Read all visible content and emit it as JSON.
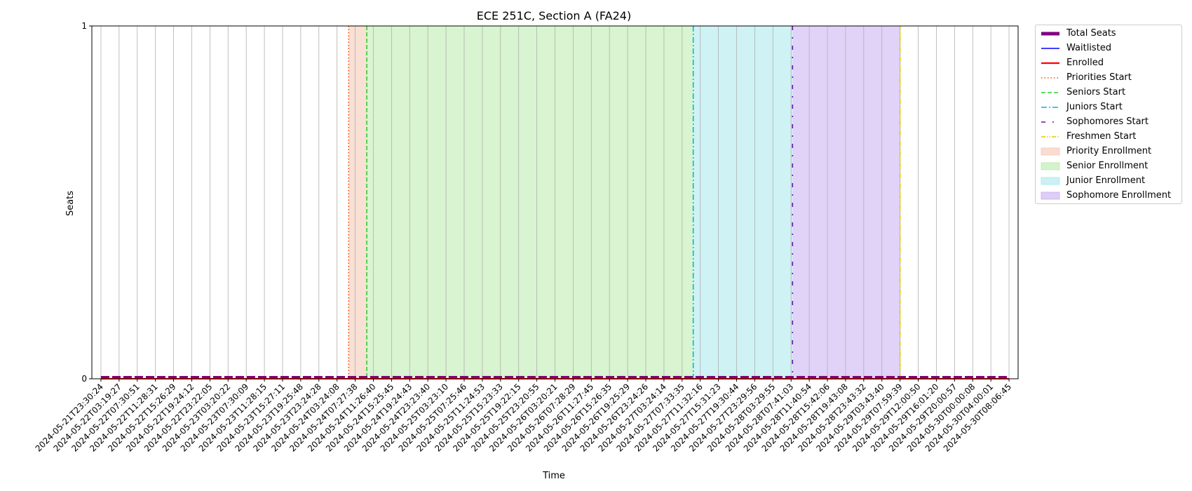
{
  "chart_data": {
    "type": "line",
    "title": "ECE 251C, Section A (FA24)",
    "xlabel": "Time",
    "ylabel": "Seats",
    "ylim": [
      0,
      1
    ],
    "yticks": [
      "0",
      "1"
    ],
    "grid": "vertical",
    "legend_position": "outside-right",
    "x": [
      "2024-05-21T23:30:24",
      "2024-05-22T03:19:27",
      "2024-05-22T07:30:51",
      "2024-05-22T11:28:31",
      "2024-05-22T15:26:29",
      "2024-05-22T19:24:12",
      "2024-05-22T23:22:05",
      "2024-05-23T03:20:22",
      "2024-05-23T07:30:09",
      "2024-05-23T11:28:15",
      "2024-05-23T15:27:11",
      "2024-05-23T19:25:48",
      "2024-05-23T23:24:28",
      "2024-05-24T03:24:08",
      "2024-05-24T07:27:38",
      "2024-05-24T11:26:40",
      "2024-05-24T15:25:45",
      "2024-05-24T19:24:43",
      "2024-05-24T23:23:40",
      "2024-05-25T03:23:10",
      "2024-05-25T07:25:46",
      "2024-05-25T11:24:53",
      "2024-05-25T15:23:33",
      "2024-05-25T19:22:15",
      "2024-05-25T23:20:55",
      "2024-05-26T03:20:21",
      "2024-05-26T07:28:29",
      "2024-05-26T11:27:45",
      "2024-05-26T15:26:35",
      "2024-05-26T19:25:29",
      "2024-05-26T23:24:26",
      "2024-05-27T03:24:14",
      "2024-05-27T07:33:35",
      "2024-05-27T11:32:16",
      "2024-05-27T15:31:23",
      "2024-05-27T19:30:44",
      "2024-05-27T23:29:56",
      "2024-05-28T03:29:55",
      "2024-05-28T07:41:03",
      "2024-05-28T11:40:54",
      "2024-05-28T15:42:06",
      "2024-05-28T19:43:08",
      "2024-05-28T23:43:32",
      "2024-05-29T03:43:40",
      "2024-05-29T07:59:39",
      "2024-05-29T12:00:50",
      "2024-05-29T16:01:20",
      "2024-05-29T20:00:57",
      "2024-05-30T00:00:08",
      "2024-05-30T04:00:01",
      "2024-05-30T08:06:45"
    ],
    "series": [
      {
        "name": "Total Seats",
        "color": "#800080",
        "style": "dashed-thick",
        "values": [
          0,
          0,
          0,
          0,
          0,
          0,
          0,
          0,
          0,
          0,
          0,
          0,
          0,
          0,
          0,
          0,
          0,
          0,
          0,
          0,
          0,
          0,
          0,
          0,
          0,
          0,
          0,
          0,
          0,
          0,
          0,
          0,
          0,
          0,
          0,
          0,
          0,
          0,
          0,
          0,
          0,
          0,
          0,
          0,
          0,
          0,
          0,
          0,
          0,
          0,
          0
        ]
      },
      {
        "name": "Waitlisted",
        "color": "#0000ff",
        "style": "solid",
        "values": [
          0,
          0,
          0,
          0,
          0,
          0,
          0,
          0,
          0,
          0,
          0,
          0,
          0,
          0,
          0,
          0,
          0,
          0,
          0,
          0,
          0,
          0,
          0,
          0,
          0,
          0,
          0,
          0,
          0,
          0,
          0,
          0,
          0,
          0,
          0,
          0,
          0,
          0,
          0,
          0,
          0,
          0,
          0,
          0,
          0,
          0,
          0,
          0,
          0,
          0,
          0
        ]
      },
      {
        "name": "Enrolled",
        "color": "#ff0000",
        "style": "solid-thick",
        "values": [
          0,
          0,
          0,
          0,
          0,
          0,
          0,
          0,
          0,
          0,
          0,
          0,
          0,
          0,
          0,
          0,
          0,
          0,
          0,
          0,
          0,
          0,
          0,
          0,
          0,
          0,
          0,
          0,
          0,
          0,
          0,
          0,
          0,
          0,
          0,
          0,
          0,
          0,
          0,
          0,
          0,
          0,
          0,
          0,
          0,
          0,
          0,
          0,
          0,
          0,
          0
        ]
      }
    ],
    "vlines": [
      {
        "name": "Priorities Start",
        "x": "2024-05-24T06:00:00",
        "color": "#ff4500",
        "style": "dotted"
      },
      {
        "name": "Seniors Start",
        "x": "2024-05-24T10:00:00",
        "color": "#32cd32",
        "style": "dashed"
      },
      {
        "name": "Juniors Start",
        "x": "2024-05-27T10:00:00",
        "color": "#00bcd4",
        "style": "dashdot"
      },
      {
        "name": "Sophomores Start",
        "x": "2024-05-28T08:00:00",
        "color": "#6a0dad",
        "style": "loose-dashdot"
      },
      {
        "name": "Freshmen Start",
        "x": "2024-05-29T08:00:00",
        "color": "#e6c700",
        "style": "dashdotdot"
      }
    ],
    "spans": [
      {
        "name": "Priority Enrollment",
        "from": "2024-05-24T06:00:00",
        "to": "2024-05-24T10:00:00",
        "color": "#f4c7b0"
      },
      {
        "name": "Senior Enrollment",
        "from": "2024-05-24T10:00:00",
        "to": "2024-05-27T10:00:00",
        "color": "#b8ebaa"
      },
      {
        "name": "Junior Enrollment",
        "from": "2024-05-27T10:00:00",
        "to": "2024-05-28T08:00:00",
        "color": "#a8e8ec"
      },
      {
        "name": "Sophomore Enrollment",
        "from": "2024-05-28T08:00:00",
        "to": "2024-05-29T08:00:00",
        "color": "#c7aef0"
      }
    ]
  },
  "legend": {
    "items": [
      {
        "label": "Total Seats",
        "kind": "line",
        "color": "#800080",
        "style": "thick"
      },
      {
        "label": "Waitlisted",
        "kind": "line",
        "color": "#0000ff",
        "style": "solid"
      },
      {
        "label": "Enrolled",
        "kind": "line",
        "color": "#ff0000",
        "style": "thick"
      },
      {
        "label": "Priorities Start",
        "kind": "line",
        "color": "#ff4500",
        "style": "dotted"
      },
      {
        "label": "Seniors Start",
        "kind": "line",
        "color": "#32cd32",
        "style": "dashed"
      },
      {
        "label": "Juniors Start",
        "kind": "line",
        "color": "#00bcd4",
        "style": "dashdot"
      },
      {
        "label": "Sophomores Start",
        "kind": "line",
        "color": "#6a0dad",
        "style": "loose-dashdot"
      },
      {
        "label": "Freshmen Start",
        "kind": "line",
        "color": "#e6c700",
        "style": "dashdotdot"
      },
      {
        "label": "Priority Enrollment",
        "kind": "patch",
        "color": "#f4c7b0"
      },
      {
        "label": "Senior Enrollment",
        "kind": "patch",
        "color": "#b8ebaa"
      },
      {
        "label": "Junior Enrollment",
        "kind": "patch",
        "color": "#a8e8ec"
      },
      {
        "label": "Sophomore Enrollment",
        "kind": "patch",
        "color": "#c7aef0"
      }
    ]
  }
}
